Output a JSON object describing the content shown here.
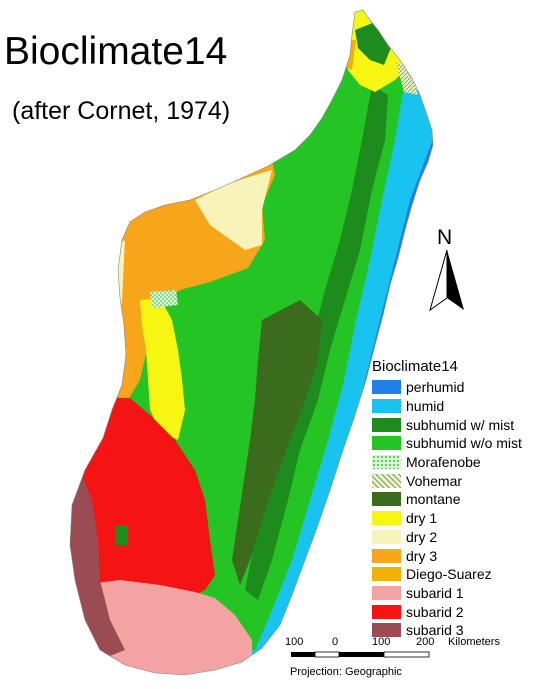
{
  "title": "Bioclimate14",
  "subtitle": "(after Cornet, 1974)",
  "north_arrow": {
    "label": "N"
  },
  "legend": {
    "title": "Bioclimate14",
    "items": [
      {
        "label": "perhumid",
        "color": "#1f7fe6"
      },
      {
        "label": "humid",
        "color": "#19c3ef"
      },
      {
        "label": "subhumid w/ mist",
        "color": "#1d8c1d"
      },
      {
        "label": "subhumid w/o mist",
        "color": "#23c423"
      },
      {
        "label": "Morafenobe",
        "color": "#bff0bf",
        "pattern": "dots"
      },
      {
        "label": "Vohemar",
        "color": "#dfe8c0",
        "pattern": "hatch"
      },
      {
        "label": "montane",
        "color": "#3b6b1c"
      },
      {
        "label": "dry 1",
        "color": "#f6f612"
      },
      {
        "label": "dry 2",
        "color": "#f8f3b8"
      },
      {
        "label": "dry 3",
        "color": "#f7a61a"
      },
      {
        "label": "Diego-Suarez",
        "color": "#f2b205"
      },
      {
        "label": "subarid 1",
        "color": "#f4a3a3"
      },
      {
        "label": "subarid 2",
        "color": "#f41414"
      },
      {
        "label": "subarid 3",
        "color": "#9b4b52"
      }
    ]
  },
  "scale_bar": {
    "labels": [
      "100",
      "0",
      "100",
      "200",
      "Kilometers"
    ],
    "projection": "Projection: Geographic"
  }
}
